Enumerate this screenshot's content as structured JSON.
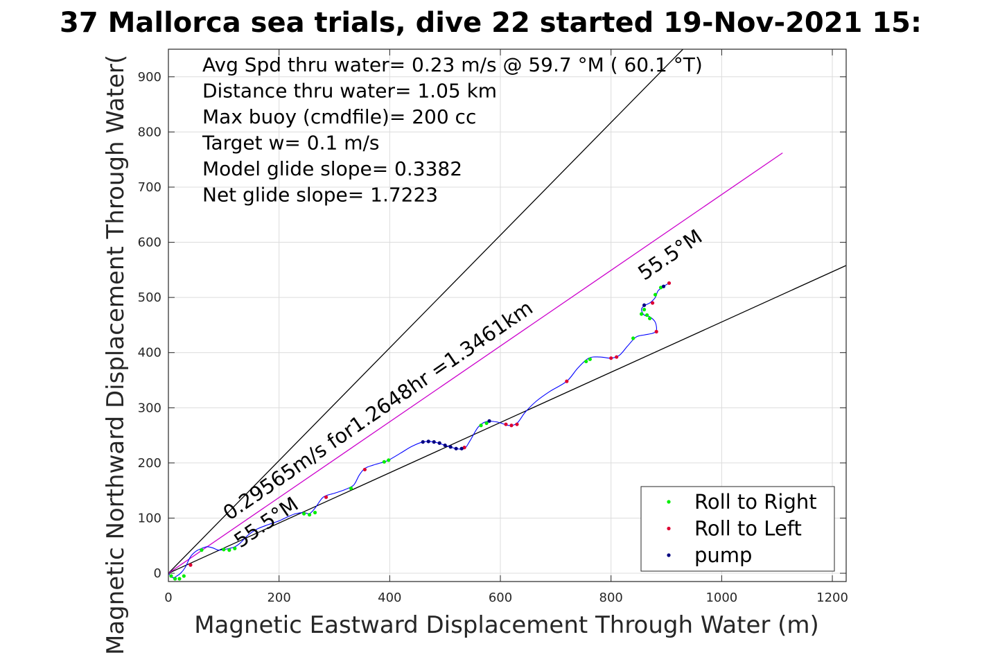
{
  "chart_data": {
    "type": "scatter",
    "title": "37 Mallorca sea trials, dive 22 started 19-Nov-2021 15:",
    "xlabel": "Magnetic Eastward Displacement Through Water (m)",
    "ylabel": "Magnetic Northward Displacement Through Water(",
    "xlim": [
      0,
      1225
    ],
    "ylim": [
      -15,
      950
    ],
    "xticks": [
      0,
      200,
      400,
      600,
      800,
      1000,
      1200
    ],
    "yticks": [
      0,
      100,
      200,
      300,
      400,
      500,
      600,
      700,
      800,
      900
    ],
    "xtick_labels": [
      "0",
      "200",
      "400",
      "600",
      "800",
      "1000",
      "1200"
    ],
    "ytick_labels": [
      "0",
      "100",
      "200",
      "300",
      "400",
      "500",
      "600",
      "700",
      "800",
      "900"
    ],
    "grid": true,
    "legend_position": "bottom-right",
    "stats": [
      "Avg Spd thru water=  0.23 m/s @  59.7 °M ( 60.1 °T)",
      "Distance thru water=  1.05 km",
      "Max buoy (cmdfile)= 200 cc",
      "Target w= 0.1 m/s",
      "Model glide slope= 0.3382",
      "Net glide slope= 1.7223"
    ],
    "annotations": [
      {
        "text": "0.29565m/s for1.2648hr =1.3461km",
        "x": 110,
        "y": 95,
        "angle_deg": 34.5
      },
      {
        "text": "55.5°M",
        "x": 130,
        "y": 45,
        "angle_deg": 34.5
      },
      {
        "text": "55.5°M",
        "x": 860,
        "y": 530,
        "angle_deg": 34.5
      }
    ],
    "lines": [
      {
        "name": "upper bound",
        "color": "#000000",
        "x": [
          0,
          930
        ],
        "y": [
          0,
          950
        ]
      },
      {
        "name": "lower bound",
        "color": "#000000",
        "x": [
          0,
          1225
        ],
        "y": [
          0,
          558
        ]
      },
      {
        "name": "heading line",
        "color": "#cc00cc",
        "x": [
          0,
          1110
        ],
        "y": [
          0,
          762
        ]
      }
    ],
    "track": {
      "color": "#0000ff",
      "x": [
        0,
        8,
        15,
        22,
        30,
        40,
        50,
        60,
        70,
        80,
        90,
        100,
        110,
        120,
        130,
        145,
        160,
        180,
        200,
        215,
        230,
        245,
        255,
        265,
        280,
        300,
        320,
        335,
        345,
        355,
        370,
        390,
        398,
        420,
        440,
        460,
        480,
        500,
        520,
        535,
        545,
        560,
        575,
        595,
        615,
        630,
        645,
        665,
        690,
        720,
        740,
        760,
        780,
        800,
        815,
        830,
        845,
        860,
        875,
        882,
        880,
        870,
        860,
        855,
        860,
        870,
        880,
        885,
        895,
        905
      ],
      "y": [
        0,
        -8,
        -5,
        0,
        10,
        30,
        40,
        45,
        48,
        46,
        42,
        43,
        45,
        48,
        55,
        70,
        80,
        88,
        95,
        102,
        108,
        110,
        108,
        118,
        138,
        145,
        152,
        160,
        178,
        190,
        196,
        202,
        205,
        218,
        230,
        238,
        238,
        232,
        226,
        226,
        240,
        265,
        275,
        274,
        268,
        272,
        292,
        312,
        330,
        348,
        372,
        390,
        392,
        390,
        395,
        412,
        428,
        432,
        435,
        440,
        455,
        465,
        468,
        478,
        485,
        490,
        500,
        512,
        520,
        526
      ]
    },
    "series": [
      {
        "name": "Roll to Right",
        "color": "#00ee00",
        "x": [
          5,
          12,
          20,
          28,
          60,
          100,
          110,
          120,
          245,
          255,
          265,
          330,
          390,
          398,
          565,
          575,
          755,
          762,
          840,
          855,
          860,
          865,
          870,
          880,
          890
        ],
        "y": [
          -5,
          -10,
          -10,
          -5,
          42,
          43,
          42,
          45,
          108,
          106,
          110,
          154,
          202,
          205,
          268,
          272,
          384,
          388,
          426,
          470,
          478,
          468,
          462,
          505,
          518
        ]
      },
      {
        "name": "Roll to Left",
        "color": "#dd0033",
        "x": [
          40,
          285,
          355,
          535,
          610,
          620,
          630,
          720,
          800,
          810,
          875,
          882,
          905
        ],
        "y": [
          15,
          138,
          188,
          228,
          270,
          268,
          270,
          348,
          390,
          392,
          490,
          438,
          526
        ]
      },
      {
        "name": "pump",
        "color": "#000080",
        "x": [
          460,
          470,
          480,
          490,
          500,
          510,
          520,
          530,
          580,
          860,
          895
        ],
        "y": [
          238,
          239,
          238,
          236,
          232,
          229,
          226,
          226,
          276,
          486,
          520
        ]
      }
    ]
  }
}
